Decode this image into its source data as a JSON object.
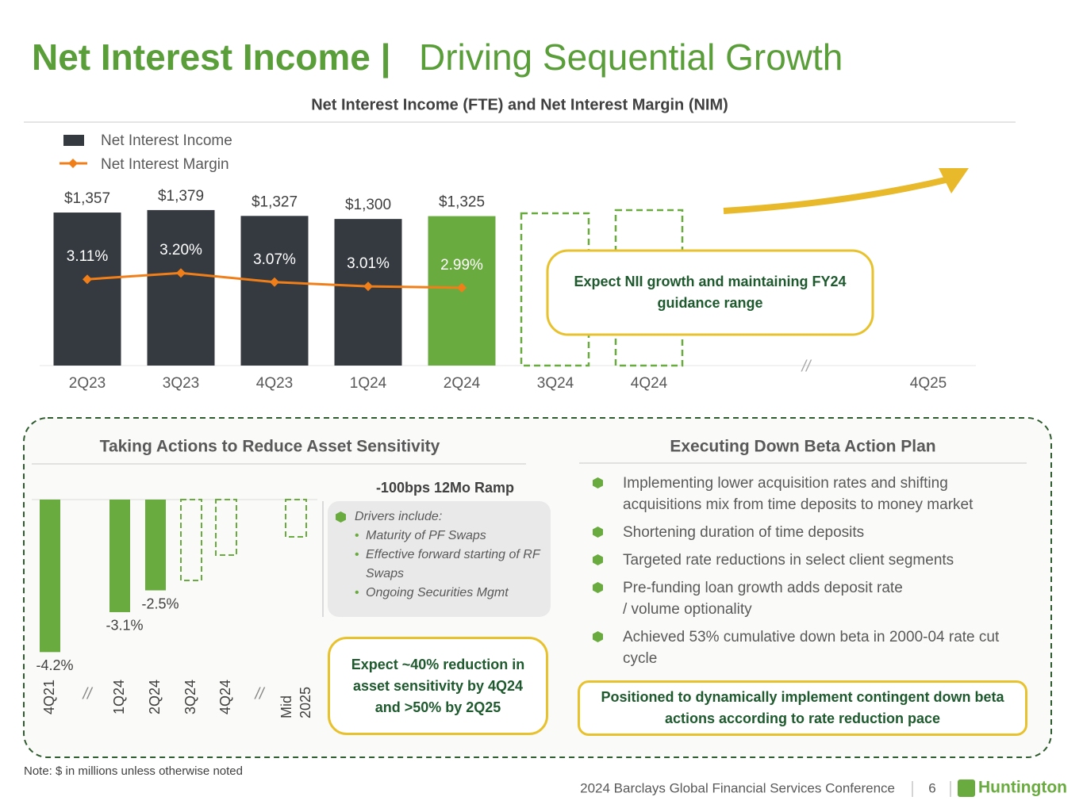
{
  "title": "Net Interest Income |",
  "subtitle": "Driving Sequential Growth",
  "chart_data": [
    {
      "type": "bar",
      "title": "Net Interest Income (FTE) and Net Interest Margin (NIM)",
      "categories": [
        "2Q23",
        "3Q23",
        "4Q23",
        "1Q24",
        "2Q24",
        "3Q24",
        "4Q24",
        "4Q25"
      ],
      "series": [
        {
          "name": "Net Interest Income",
          "color": "#343a40",
          "colors": [
            "#343a40",
            "#343a40",
            "#343a40",
            "#343a40",
            "#6aab3f",
            null,
            null,
            null
          ],
          "values": [
            1357,
            1379,
            1327,
            1300,
            1325,
            null,
            null,
            null
          ],
          "value_labels": [
            "$1,357",
            "$1,379",
            "$1,327",
            "$1,300",
            "$1,325",
            null,
            null,
            null
          ]
        },
        {
          "name": "Net Interest Margin",
          "type": "line",
          "axis": "y2",
          "color": "#f07f1a",
          "values": [
            3.11,
            3.2,
            3.07,
            3.01,
            2.99,
            null,
            null,
            null
          ],
          "value_labels": [
            "3.11%",
            "3.20%",
            "3.07%",
            "3.01%",
            "2.99%",
            null,
            null,
            null
          ]
        }
      ],
      "legend": "top-left",
      "annotation": "Expect NII growth and maintaining FY24 guidance range"
    },
    {
      "type": "bar",
      "title": "Taking Actions to Reduce Asset Sensitivity",
      "subtitle": "-100bps 12Mo Ramp",
      "categories": [
        "4Q21",
        "1Q24",
        "2Q24",
        "3Q24",
        "4Q24",
        "Mid 2025"
      ],
      "color": "#6aab3f",
      "values": [
        -4.2,
        -3.1,
        -2.5,
        null,
        null,
        null
      ],
      "value_labels": [
        "-4.2%",
        "-3.1%",
        "-2.5%",
        null,
        null,
        null
      ]
    }
  ],
  "drivers": {
    "heading": "Drivers include:",
    "items": [
      "Maturity of PF Swaps",
      "Effective forward starting of RF Swaps",
      "Ongoing Securities Mgmt"
    ]
  },
  "callout_sensitivity": "Expect ~40% reduction in asset sensitivity by 4Q24 and >50% by 2Q25",
  "action_plan": {
    "title": "Executing Down Beta Action Plan",
    "items": [
      "Implementing lower acquisition rates and shifting acquisitions mix from time deposits to money market",
      "Shortening duration of time deposits",
      "Targeted rate reductions in select client segments",
      "Pre-funding loan growth adds deposit rate / volume optionality",
      "Achieved 53% cumulative down beta in 2000-04 rate cut cycle"
    ],
    "callout": "Positioned to dynamically implement contingent down beta actions according to rate reduction pace"
  },
  "note": "Note: $ in millions unless otherwise noted",
  "footer": {
    "conference": "2024 Barclays Global Financial Services Conference",
    "page": "6",
    "brand": "Huntington"
  }
}
